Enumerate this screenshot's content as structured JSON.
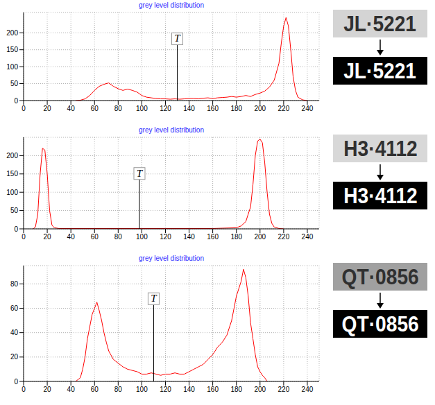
{
  "chart_data": [
    {
      "type": "line",
      "title": "grey level distribution",
      "color": "#ff0000",
      "grid": true,
      "x": [
        44,
        48,
        52,
        56,
        60,
        64,
        68,
        72,
        76,
        80,
        84,
        88,
        92,
        96,
        100,
        104,
        108,
        112,
        116,
        120,
        124,
        128,
        132,
        136,
        140,
        144,
        148,
        152,
        156,
        160,
        164,
        168,
        172,
        176,
        180,
        184,
        188,
        192,
        196,
        200,
        204,
        208,
        212,
        216,
        218,
        220,
        222,
        224,
        226,
        228,
        230,
        232,
        236,
        240
      ],
      "values": [
        0,
        1,
        5,
        15,
        30,
        42,
        48,
        52,
        42,
        35,
        30,
        34,
        30,
        25,
        15,
        10,
        8,
        6,
        5,
        5,
        4,
        5,
        4,
        5,
        6,
        6,
        5,
        7,
        8,
        6,
        8,
        9,
        10,
        12,
        10,
        12,
        15,
        12,
        18,
        22,
        28,
        40,
        60,
        110,
        170,
        220,
        245,
        220,
        150,
        70,
        30,
        10,
        2,
        0
      ],
      "xlim": [
        0,
        250
      ],
      "xticks": [
        0,
        20,
        40,
        60,
        80,
        100,
        120,
        140,
        160,
        180,
        200,
        220,
        240
      ],
      "ylim": [
        0,
        260
      ],
      "yticks": [
        0,
        50,
        100,
        150,
        200
      ],
      "annotations": [
        {
          "text": "T",
          "x": 130,
          "y": 165
        }
      ],
      "plate": {
        "original": "JL·5221",
        "binarized": "JL·5221"
      }
    },
    {
      "type": "line",
      "title": "grey level distribution",
      "color": "#ff0000",
      "grid": true,
      "x": [
        8,
        10,
        12,
        14,
        16,
        18,
        20,
        22,
        24,
        26,
        30,
        40,
        60,
        80,
        100,
        120,
        140,
        160,
        180,
        184,
        188,
        192,
        194,
        196,
        198,
        200,
        202,
        204,
        206,
        208,
        210,
        212,
        216,
        220
      ],
      "values": [
        0,
        5,
        40,
        150,
        220,
        215,
        150,
        50,
        10,
        3,
        1,
        1,
        1,
        1,
        1,
        1,
        1,
        1,
        3,
        8,
        20,
        60,
        120,
        200,
        240,
        245,
        235,
        180,
        100,
        40,
        15,
        5,
        1,
        0
      ],
      "xlim": [
        0,
        250
      ],
      "xticks": [
        0,
        20,
        40,
        60,
        80,
        100,
        120,
        140,
        160,
        180,
        200,
        220,
        240
      ],
      "ylim": [
        0,
        250
      ],
      "yticks": [
        0,
        50,
        100,
        150,
        200
      ],
      "annotations": [
        {
          "text": "T",
          "x": 98,
          "y": 135
        }
      ],
      "plate": {
        "original": "H3·4112",
        "binarized": "H3·4112"
      }
    },
    {
      "type": "line",
      "title": "grey level distribution",
      "color": "#ff0000",
      "grid": true,
      "x": [
        44,
        48,
        50,
        52,
        54,
        56,
        58,
        60,
        62,
        64,
        66,
        68,
        70,
        72,
        76,
        80,
        84,
        88,
        92,
        96,
        100,
        104,
        108,
        112,
        116,
        120,
        124,
        128,
        132,
        136,
        140,
        144,
        148,
        152,
        156,
        160,
        164,
        168,
        172,
        176,
        180,
        184,
        186,
        188,
        190,
        192,
        194,
        196,
        198,
        200,
        202,
        204,
        206
      ],
      "values": [
        0,
        3,
        10,
        20,
        35,
        45,
        55,
        60,
        65,
        58,
        50,
        40,
        32,
        25,
        18,
        15,
        12,
        10,
        9,
        8,
        6,
        6,
        7,
        6,
        5,
        6,
        6,
        7,
        6,
        6,
        8,
        10,
        12,
        14,
        18,
        22,
        28,
        32,
        38,
        50,
        70,
        82,
        92,
        85,
        70,
        48,
        35,
        22,
        12,
        8,
        5,
        3,
        0
      ],
      "xlim": [
        0,
        250
      ],
      "xticks": [
        0,
        20,
        40,
        60,
        80,
        100,
        120,
        140,
        160,
        180,
        200,
        220,
        240
      ],
      "ylim": [
        0,
        95
      ],
      "yticks": [
        0,
        20,
        40,
        60,
        80
      ],
      "annotations": [
        {
          "text": "T",
          "x": 110,
          "y": 63
        }
      ],
      "plate": {
        "original": "QT·0856",
        "binarized": "QT·0856"
      }
    }
  ]
}
